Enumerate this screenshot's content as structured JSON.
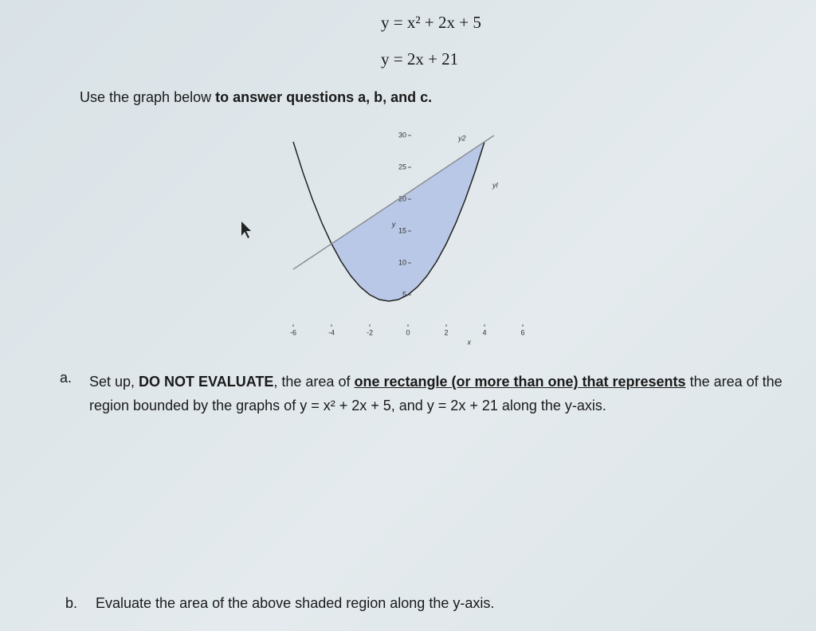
{
  "equations": [
    "y = x² + 2x + 5",
    "y = 2x + 21"
  ],
  "instruction": {
    "plain": "Use the graph below ",
    "bold": "to answer questions a, b, and c."
  },
  "chart_data": {
    "type": "line",
    "x": [
      -6,
      -5.5,
      -5,
      -4.5,
      -4,
      -3.5,
      -3,
      -2.5,
      -2,
      -1.5,
      -1,
      -0.5,
      0,
      0.5,
      1,
      1.5,
      2,
      2.5,
      3,
      3.5,
      4,
      4.5
    ],
    "series": [
      {
        "name": "yl",
        "color": "#222222",
        "values": [
          29,
          24.25,
          20,
          16.25,
          13,
          10.25,
          8,
          6.25,
          5,
          4.25,
          4,
          4.25,
          5,
          6.25,
          8,
          10.25,
          13,
          16.25,
          20,
          24.25,
          29,
          null
        ]
      },
      {
        "name": "y2",
        "color": "#8a8f96",
        "values": [
          9,
          10,
          11,
          12,
          13,
          14,
          15,
          16,
          17,
          18,
          19,
          20,
          21,
          22,
          23,
          24,
          25,
          26,
          27,
          28,
          29,
          30
        ]
      }
    ],
    "fill_color": "#b9c8e6",
    "xlabel": "x",
    "ylabel": "y",
    "xlim": [
      -6,
      6
    ],
    "ylim": [
      0,
      30
    ],
    "xticks": [
      -6,
      -4,
      -2,
      0,
      2,
      4,
      6
    ],
    "yticks": [
      5,
      10,
      15,
      20,
      25,
      30
    ]
  },
  "questions": [
    {
      "label": "a.",
      "parts": [
        "Set up, ",
        "DO NOT EVALUATE",
        ", the area of ",
        "one rectangle (or more than one) that represents",
        " the area of the region bounded by the graphs of y = x² + 2x + 5, and y = 2x + 21 along the y-axis."
      ]
    },
    {
      "label": "b.",
      "parts": [
        "Evaluate the area of the above shaded region along the y-axis."
      ]
    }
  ]
}
